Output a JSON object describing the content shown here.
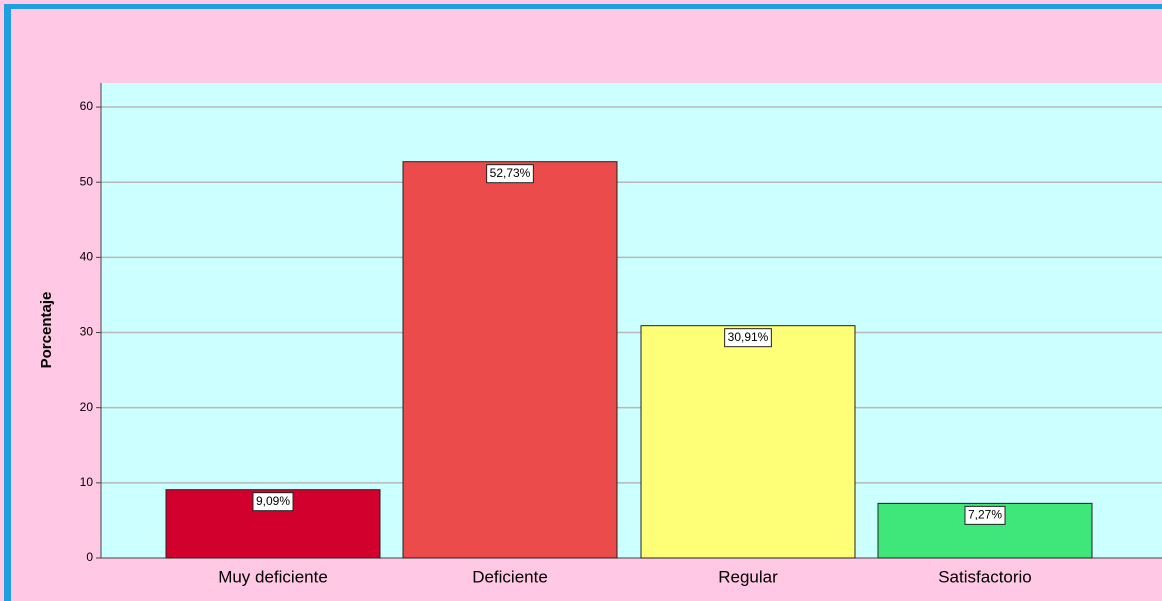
{
  "chart_data": {
    "type": "bar",
    "y_label": "Porcentaje",
    "categories": [
      "Muy deficiente",
      "Deficiente",
      "Regular",
      "Satisfactorio"
    ],
    "values": [
      9.09,
      52.73,
      30.91,
      7.27
    ],
    "value_labels": [
      "9,09%",
      "52,73%",
      "30,91%",
      "7,27%"
    ],
    "colors": [
      "#d2002d",
      "#ec4b4b",
      "#ffff77",
      "#3fe67a"
    ],
    "ylim": [
      0,
      63.2
    ],
    "yticks": [
      0,
      10,
      20,
      30,
      40,
      50,
      60
    ],
    "grid": true
  }
}
